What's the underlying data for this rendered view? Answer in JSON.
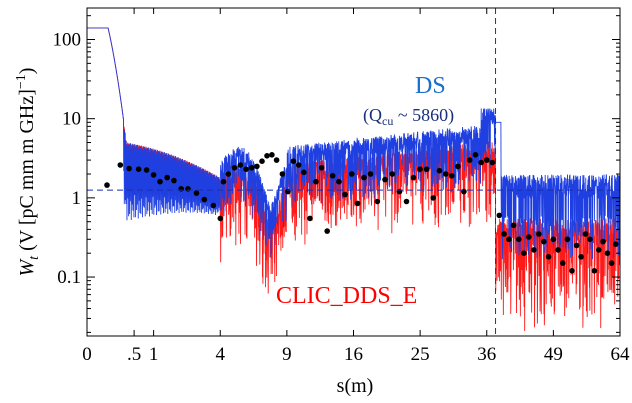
{
  "chart_data": {
    "type": "line",
    "x_axis": {
      "label": "s(m)",
      "scale": "sqrt",
      "range": [
        0,
        64
      ],
      "ticks": [
        0,
        0.5,
        1,
        4,
        9,
        16,
        25,
        36,
        49,
        64
      ],
      "tick_labels": [
        "0",
        ".5",
        "1",
        "4",
        "9",
        "16",
        "25",
        "36",
        "49",
        "64"
      ]
    },
    "y_axis": {
      "label_main": "W",
      "label_sub": "t",
      "label_rest": " (V [pC mm m GHz]",
      "label_sup": "−1",
      "label_close": ")",
      "scale": "log",
      "range": [
        0.018,
        250
      ],
      "ticks": [
        0.1,
        1,
        10,
        100
      ],
      "tick_labels": [
        "0.1",
        "1",
        "10",
        "100"
      ]
    },
    "series": [
      {
        "name": "DS",
        "color": "#1f3fe0",
        "text_color": "#1a6fd0"
      },
      {
        "name": "CLIC_DDS_E",
        "color": "#ff1a1a",
        "text_color": "#ff0000"
      }
    ],
    "annotation": {
      "prefix": "(Q",
      "sub": "cu",
      "suffix": " ~ 5860)",
      "color": "#1a2f7a"
    },
    "reference_lines": {
      "horizontal_y": 1.25,
      "vertical_x": 37.6,
      "color": "#1a2fb0"
    },
    "markers": {
      "color": "#000000",
      "points": [
        [
          0.09,
          1.45
        ],
        [
          0.25,
          2.6
        ],
        [
          0.4,
          2.35
        ],
        [
          0.6,
          2.3
        ],
        [
          0.8,
          2.25
        ],
        [
          1.0,
          1.95
        ],
        [
          1.2,
          1.6
        ],
        [
          1.45,
          1.8
        ],
        [
          1.7,
          1.65
        ],
        [
          2.0,
          1.3
        ],
        [
          2.3,
          1.3
        ],
        [
          2.7,
          1.15
        ],
        [
          3.1,
          0.95
        ],
        [
          3.6,
          0.8
        ],
        [
          4.0,
          0.55
        ],
        [
          4.2,
          1.6
        ],
        [
          4.5,
          2.0
        ],
        [
          4.9,
          2.4
        ],
        [
          5.3,
          2.6
        ],
        [
          5.7,
          2.3
        ],
        [
          6.1,
          2.4
        ],
        [
          6.5,
          2.5
        ],
        [
          6.9,
          2.9
        ],
        [
          7.3,
          3.4
        ],
        [
          7.7,
          3.5
        ],
        [
          8.1,
          3.0
        ],
        [
          8.6,
          2.0
        ],
        [
          9.1,
          1.2
        ],
        [
          9.6,
          2.9
        ],
        [
          10.1,
          2.6
        ],
        [
          10.6,
          2.1
        ],
        [
          11.2,
          0.55
        ],
        [
          11.8,
          1.6
        ],
        [
          12.4,
          2.4
        ],
        [
          13.0,
          0.38
        ],
        [
          13.6,
          1.9
        ],
        [
          14.3,
          1.6
        ],
        [
          15.0,
          1.1
        ],
        [
          15.8,
          2.0
        ],
        [
          16.5,
          0.85
        ],
        [
          17.3,
          1.8
        ],
        [
          18.1,
          2.0
        ],
        [
          19.0,
          0.9
        ],
        [
          20.0,
          1.7
        ],
        [
          21.0,
          2.0
        ],
        [
          22.0,
          1.2
        ],
        [
          23.0,
          0.9
        ],
        [
          24.0,
          1.8
        ],
        [
          25.0,
          2.3
        ],
        [
          26.0,
          2.3
        ],
        [
          27.0,
          1.0
        ],
        [
          28.0,
          2.2
        ],
        [
          29.0,
          2.0
        ],
        [
          30.0,
          1.9
        ],
        [
          31.0,
          2.5
        ],
        [
          32.0,
          1.2
        ],
        [
          33.0,
          3.0
        ],
        [
          34.0,
          3.5
        ],
        [
          35.0,
          2.8
        ],
        [
          36.0,
          3.0
        ],
        [
          37.0,
          2.8
        ],
        [
          38.3,
          0.6
        ],
        [
          39.2,
          0.35
        ],
        [
          40.1,
          0.3
        ],
        [
          41.0,
          0.45
        ],
        [
          42.0,
          0.3
        ],
        [
          43.0,
          0.2
        ],
        [
          44.0,
          0.32
        ],
        [
          45.0,
          0.22
        ],
        [
          46.0,
          0.35
        ],
        [
          47.0,
          0.28
        ],
        [
          48.0,
          0.18
        ],
        [
          49.0,
          0.3
        ],
        [
          50.0,
          0.22
        ],
        [
          51.0,
          0.15
        ],
        [
          52.0,
          0.3
        ],
        [
          53.0,
          0.12
        ],
        [
          54.0,
          0.25
        ],
        [
          55.0,
          0.18
        ],
        [
          56.0,
          0.35
        ],
        [
          57.0,
          0.3
        ],
        [
          58.0,
          0.12
        ],
        [
          59.0,
          0.22
        ],
        [
          60.0,
          0.28
        ],
        [
          61.0,
          0.2
        ],
        [
          62.0,
          0.15
        ],
        [
          63.0,
          0.26
        ]
      ]
    }
  }
}
